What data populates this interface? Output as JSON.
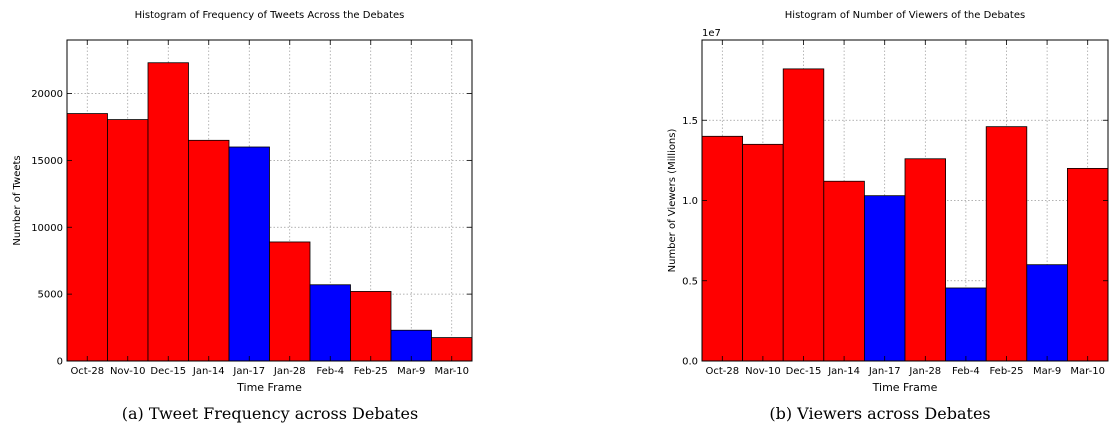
{
  "chart_data": [
    {
      "type": "bar",
      "title": "Histogram of Frequency of Tweets Across the Debates",
      "xlabel": "Time Frame",
      "ylabel": "Number of Tweets",
      "categories": [
        "Oct-28",
        "Nov-10",
        "Dec-15",
        "Jan-14",
        "Jan-17",
        "Jan-28",
        "Feb-4",
        "Feb-25",
        "Mar-9",
        "Mar-10"
      ],
      "values": [
        18500,
        18050,
        22300,
        16500,
        16000,
        8900,
        5700,
        5200,
        2300,
        1750
      ],
      "bar_colors": [
        "#ff0000",
        "#ff0000",
        "#ff0000",
        "#ff0000",
        "#0000ff",
        "#ff0000",
        "#0000ff",
        "#ff0000",
        "#0000ff",
        "#ff0000"
      ],
      "ylim": [
        0,
        24000
      ],
      "yticks": [
        0,
        5000,
        10000,
        15000,
        20000
      ],
      "ytick_labels": [
        "0",
        "5000",
        "10000",
        "15000",
        "20000"
      ],
      "scale_label": "",
      "grid": true,
      "legend": "none"
    },
    {
      "type": "bar",
      "title": "Histogram of Number of Viewers of the Debates",
      "xlabel": "Time Frame",
      "ylabel": "Number of Viewers (Millions)",
      "categories": [
        "Oct-28",
        "Nov-10",
        "Dec-15",
        "Jan-14",
        "Jan-17",
        "Jan-28",
        "Feb-4",
        "Feb-25",
        "Mar-9",
        "Mar-10"
      ],
      "values": [
        14000000,
        13500000,
        18200000,
        11200000,
        10300000,
        12600000,
        4550000,
        14600000,
        6000000,
        12000000
      ],
      "bar_colors": [
        "#ff0000",
        "#ff0000",
        "#ff0000",
        "#ff0000",
        "#0000ff",
        "#ff0000",
        "#0000ff",
        "#ff0000",
        "#0000ff",
        "#ff0000"
      ],
      "ylim": [
        0,
        20000000
      ],
      "yticks": [
        0,
        5000000,
        10000000,
        15000000
      ],
      "ytick_labels": [
        "0.0",
        "0.5",
        "1.0",
        "1.5"
      ],
      "scale_label": "1e7",
      "grid": true,
      "legend": "none"
    }
  ],
  "captions": {
    "a": "(a) Tweet Frequency across Debates",
    "b": "(b) Viewers across Debates"
  }
}
